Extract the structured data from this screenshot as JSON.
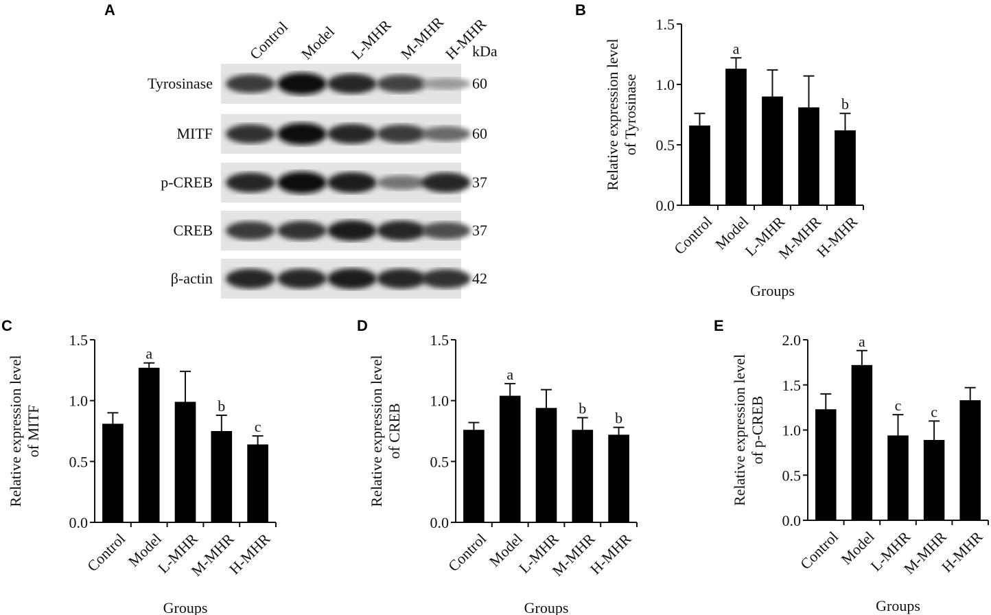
{
  "blot": {
    "panel": "A",
    "kda_header": "kDa",
    "lanes": [
      "Control",
      "Model",
      "L-MHR",
      "M-MHR",
      "H-MHR"
    ],
    "rows": [
      {
        "protein": "Tyrosinase",
        "kda": "60",
        "intensity": [
          0.75,
          1.0,
          0.85,
          0.7,
          0.25
        ]
      },
      {
        "protein": "MITF",
        "kda": "60",
        "intensity": [
          0.8,
          1.0,
          0.85,
          0.75,
          0.5
        ]
      },
      {
        "protein": "p-CREB",
        "kda": "37",
        "intensity": [
          0.85,
          1.0,
          0.9,
          0.45,
          0.85
        ]
      },
      {
        "protein": "CREB",
        "kda": "37",
        "intensity": [
          0.75,
          0.8,
          0.9,
          0.85,
          0.65
        ]
      },
      {
        "protein": "β-actin",
        "kda": "42",
        "intensity": [
          0.85,
          0.85,
          0.9,
          0.85,
          0.8
        ]
      }
    ]
  },
  "chart_data": [
    {
      "panel": "B",
      "type": "bar",
      "categories": [
        "Control",
        "Model",
        "L-MHR",
        "M-MHR",
        "H-MHR"
      ],
      "values": [
        0.66,
        1.13,
        0.9,
        0.81,
        0.62
      ],
      "errors": [
        0.1,
        0.09,
        0.22,
        0.26,
        0.14
      ],
      "annotations": [
        "",
        "a",
        "",
        "",
        "b"
      ],
      "ylabel": [
        "Relative expression level",
        "of Tyrosinase"
      ],
      "xlabel": "Groups",
      "ylim": [
        0,
        1.5
      ],
      "yticks": [
        "0.0",
        "0.5",
        "1.0",
        "1.5"
      ]
    },
    {
      "panel": "C",
      "type": "bar",
      "categories": [
        "Control",
        "Model",
        "L-MHR",
        "M-MHR",
        "H-MHR"
      ],
      "values": [
        0.81,
        1.27,
        0.99,
        0.75,
        0.64
      ],
      "errors": [
        0.09,
        0.04,
        0.25,
        0.13,
        0.07
      ],
      "annotations": [
        "",
        "a",
        "",
        "b",
        "c"
      ],
      "ylabel": [
        "Relative expression level",
        "of MITF"
      ],
      "xlabel": "Groups",
      "ylim": [
        0,
        1.5
      ],
      "yticks": [
        "0.0",
        "0.5",
        "1.0",
        "1.5"
      ]
    },
    {
      "panel": "D",
      "type": "bar",
      "categories": [
        "Control",
        "Model",
        "L-MHR",
        "M-MHR",
        "H-MHR"
      ],
      "values": [
        0.76,
        1.04,
        0.94,
        0.76,
        0.72
      ],
      "errors": [
        0.06,
        0.1,
        0.15,
        0.1,
        0.06
      ],
      "annotations": [
        "",
        "a",
        "",
        "b",
        "b"
      ],
      "ylabel": [
        "Relative expression level",
        "of CREB"
      ],
      "xlabel": "Groups",
      "ylim": [
        0,
        1.5
      ],
      "yticks": [
        "0.0",
        "0.5",
        "1.0",
        "1.5"
      ]
    },
    {
      "panel": "E",
      "type": "bar",
      "categories": [
        "Control",
        "Model",
        "L-MHR",
        "M-MHR",
        "H-MHR"
      ],
      "values": [
        1.23,
        1.72,
        0.94,
        0.89,
        1.33
      ],
      "errors": [
        0.17,
        0.16,
        0.23,
        0.21,
        0.14
      ],
      "annotations": [
        "",
        "a",
        "c",
        "c",
        ""
      ],
      "ylabel": [
        "Relative expression level",
        "of p-CREB"
      ],
      "xlabel": "Groups",
      "ylim": [
        0,
        2.0
      ],
      "yticks": [
        "0.0",
        "0.5",
        "1.0",
        "1.5",
        "2.0"
      ]
    }
  ]
}
